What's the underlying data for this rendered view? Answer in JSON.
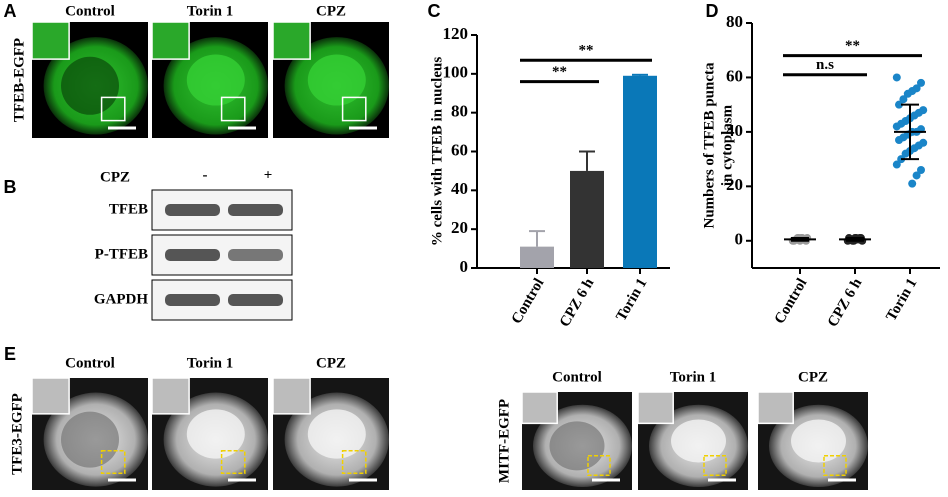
{
  "panels": {
    "A": {
      "label": "A",
      "row_label": "TFEB-EGFP",
      "titles": [
        "Control",
        "Torin 1",
        "CPZ"
      ]
    },
    "B": {
      "label": "B",
      "treatment": "CPZ",
      "lanes": [
        "-",
        "+"
      ],
      "rows": [
        "TFEB",
        "P-TFEB",
        "GAPDH"
      ]
    },
    "E": {
      "label": "E",
      "groups": [
        {
          "row_label": "TFE3-EGFP",
          "titles": [
            "Control",
            "Torin 1",
            "CPZ"
          ]
        },
        {
          "row_label": "MITF-EGFP",
          "titles": [
            "Control",
            "Torin 1",
            "CPZ"
          ]
        }
      ]
    }
  },
  "chart_data": [
    {
      "type": "bar",
      "label": "C",
      "ylabel": "% cells with TFEB in nucleus",
      "categories": [
        "Control",
        "CPZ 6 h",
        "Torin 1"
      ],
      "values": [
        11,
        50,
        99
      ],
      "errors": [
        8,
        10,
        0.5
      ],
      "colors": [
        "#a3a3ab",
        "#333333",
        "#0a78b8"
      ],
      "ylim": [
        0,
        120
      ],
      "yticks": [
        0,
        20,
        40,
        60,
        80,
        100,
        120
      ],
      "comparisons": [
        {
          "label": "**",
          "y": 96,
          "between": [
            "Control",
            "CPZ 6 h"
          ]
        },
        {
          "label": "**",
          "y": 107,
          "between": [
            "Control",
            "Torin 1"
          ]
        }
      ]
    },
    {
      "type": "scatter",
      "label": "D",
      "ylabel": [
        "Numbers of TFEB puncta",
        "in cytoplasm"
      ],
      "categories": [
        "Control",
        "CPZ 6 h",
        "Torin 1"
      ],
      "ylim": [
        -10,
        80
      ],
      "yticks": [
        0,
        20,
        40,
        60,
        80
      ],
      "groups": [
        {
          "color": "#9a9a9a",
          "values": [
            0,
            0,
            0.5,
            1,
            1,
            0.5,
            0,
            1,
            0.5,
            1,
            0,
            1
          ],
          "mean": 0.5,
          "sd": 0.5
        },
        {
          "color": "#222222",
          "values": [
            0,
            1,
            0.5,
            1,
            0,
            0.5,
            1,
            0,
            1,
            0.5,
            1,
            0
          ],
          "mean": 0.5,
          "sd": 0.5
        },
        {
          "color": "#1a85c8",
          "values": [
            60,
            58,
            56,
            55,
            54,
            52,
            50,
            48,
            47,
            46,
            45,
            44,
            43,
            42,
            41,
            40,
            40,
            39,
            38,
            37,
            36,
            35,
            34,
            33,
            32,
            30,
            28,
            26,
            24,
            21
          ],
          "mean": 40,
          "sd": 10
        }
      ],
      "comparisons": [
        {
          "label": "n.s",
          "y": 61,
          "between": [
            "Control",
            "CPZ 6 h"
          ]
        },
        {
          "label": "**",
          "y": 68,
          "between": [
            "Control",
            "Torin 1"
          ]
        }
      ]
    }
  ]
}
